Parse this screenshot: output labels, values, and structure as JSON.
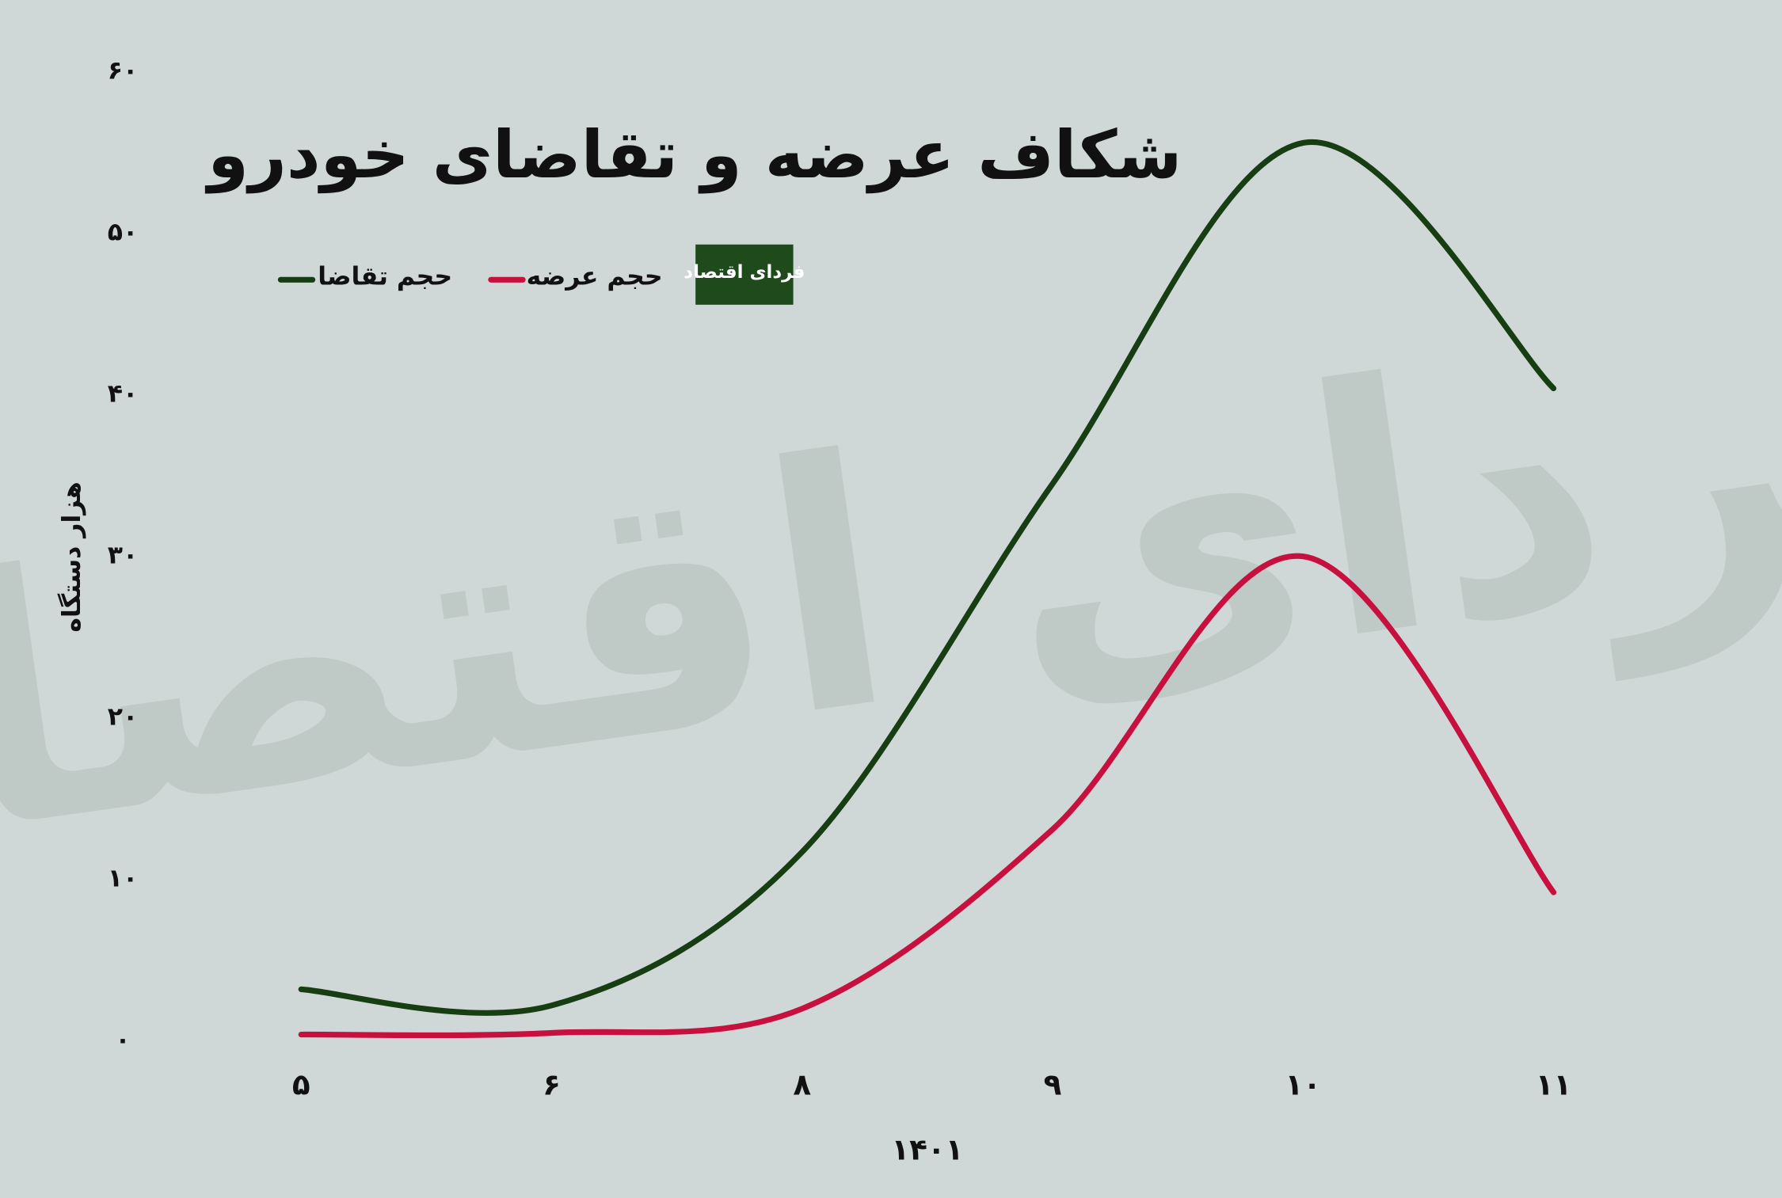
{
  "chart_data": {
    "type": "line",
    "title": "شکاف عرضه و تقاضای خودرو",
    "logo": "فردای اقتصاد",
    "x_label": "۱۴۰۱",
    "y_label": "هزار دستگاه",
    "categories": [
      "۵",
      "۶",
      "۸",
      "۹",
      "۱۰",
      "۱۱"
    ],
    "series": [
      {
        "name": "حجم تقاضا",
        "color": "#173d12",
        "values": [
          3.2,
          2.2,
          11.7,
          34.5,
          55.6,
          40.4
        ]
      },
      {
        "name": "حجم عرضه",
        "color": "#c8103e",
        "values": [
          0.4,
          0.5,
          2,
          13.1,
          30,
          9.2
        ]
      }
    ],
    "ylim": [
      0,
      60
    ],
    "yticks": [
      {
        "value": 0,
        "label": "۰"
      },
      {
        "value": 10,
        "label": "۱۰"
      },
      {
        "value": 20,
        "label": "۲۰"
      },
      {
        "value": 30,
        "label": "۳۰"
      },
      {
        "value": 40,
        "label": "۴۰"
      },
      {
        "value": 50,
        "label": "۵۰"
      },
      {
        "value": 60,
        "label": "۶۰"
      }
    ],
    "smooth": true
  }
}
